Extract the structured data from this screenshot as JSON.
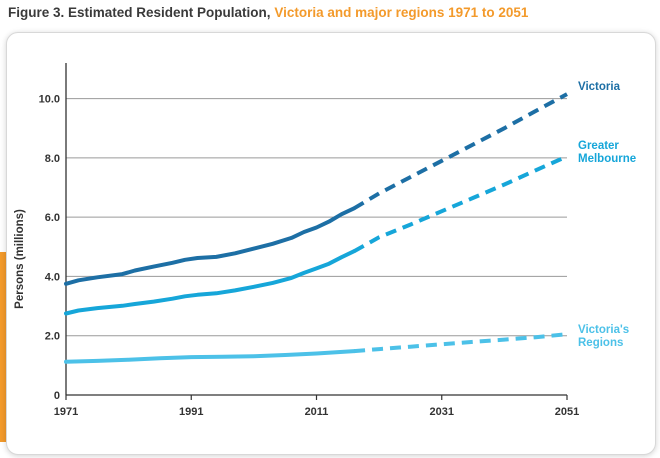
{
  "figure": {
    "title_lead": "Figure 3. Estimated Resident Population,",
    "title_accent": "Victoria and major regions 1971 to 2051"
  },
  "colors": {
    "title_accent": "#f39a2b",
    "victoria": "#1d6fa5",
    "greater_melbourne": "#16a6d9",
    "regions": "#4cc1e8",
    "grid": "#9a9a9a",
    "axis": "#333333"
  },
  "chart_data": {
    "type": "line",
    "title": "Estimated Resident Population, Victoria and major regions 1971 to 2051",
    "xlabel": "",
    "ylabel": "Persons (millions)",
    "xlim": [
      1971,
      2051
    ],
    "ylim": [
      0,
      11.2
    ],
    "x_ticks": [
      "1971",
      "1991",
      "2011",
      "2031",
      "2051"
    ],
    "y_ticks": [
      "0",
      "2.0",
      "4.0",
      "6.0",
      "8.0",
      "10.0"
    ],
    "grid": true,
    "legend": "inline labels at right end of lines",
    "series": [
      {
        "name": "Victoria",
        "label_lines": [
          "Victoria"
        ],
        "color": "#1d6fa5",
        "estimated": {
          "x": [
            1971,
            1973,
            1976,
            1980,
            1982,
            1985,
            1988,
            1990,
            1992,
            1995,
            1998,
            2001,
            2004,
            2007,
            2009,
            2011,
            2013,
            2015,
            2017
          ],
          "y": [
            3.75,
            3.87,
            3.97,
            4.08,
            4.2,
            4.33,
            4.46,
            4.56,
            4.62,
            4.66,
            4.78,
            4.94,
            5.1,
            5.3,
            5.5,
            5.65,
            5.85,
            6.1,
            6.3
          ]
        },
        "projected": {
          "x": [
            2017,
            2021,
            2026,
            2031,
            2036,
            2041,
            2046,
            2051
          ],
          "y": [
            6.3,
            6.8,
            7.35,
            7.9,
            8.45,
            9.0,
            9.58,
            10.15
          ]
        }
      },
      {
        "name": "Greater Melbourne",
        "label_lines": [
          "Greater",
          "Melbourne"
        ],
        "color": "#16a6d9",
        "estimated": {
          "x": [
            1971,
            1973,
            1976,
            1980,
            1982,
            1985,
            1988,
            1990,
            1992,
            1995,
            1998,
            2001,
            2004,
            2007,
            2009,
            2011,
            2013,
            2015,
            2017
          ],
          "y": [
            2.75,
            2.85,
            2.93,
            3.01,
            3.07,
            3.15,
            3.25,
            3.33,
            3.38,
            3.43,
            3.53,
            3.65,
            3.78,
            3.95,
            4.12,
            4.27,
            4.43,
            4.65,
            4.85
          ]
        },
        "projected": {
          "x": [
            2017,
            2021,
            2026,
            2031,
            2036,
            2041,
            2046,
            2051
          ],
          "y": [
            4.85,
            5.32,
            5.75,
            6.2,
            6.65,
            7.1,
            7.58,
            8.05
          ]
        }
      },
      {
        "name": "Victoria's Regions",
        "label_lines": [
          "Victoria's",
          "Regions"
        ],
        "color": "#4cc1e8",
        "estimated": {
          "x": [
            1971,
            1976,
            1981,
            1986,
            1991,
            1996,
            2001,
            2006,
            2011,
            2017
          ],
          "y": [
            1.12,
            1.15,
            1.19,
            1.24,
            1.28,
            1.29,
            1.31,
            1.35,
            1.4,
            1.48
          ]
        },
        "projected": {
          "x": [
            2017,
            2021,
            2026,
            2031,
            2036,
            2041,
            2046,
            2051
          ],
          "y": [
            1.48,
            1.55,
            1.63,
            1.71,
            1.79,
            1.87,
            1.95,
            2.05
          ]
        }
      }
    ]
  }
}
